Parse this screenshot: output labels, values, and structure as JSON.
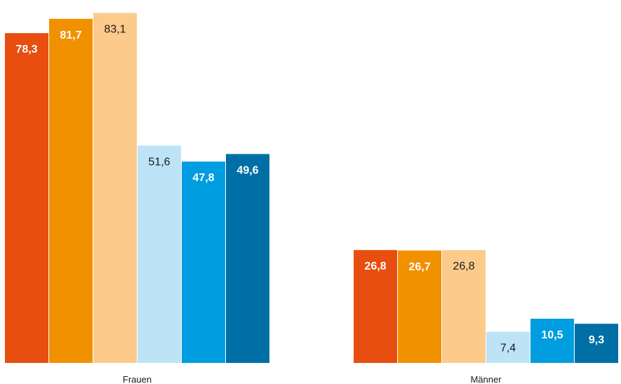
{
  "chart_data": {
    "type": "bar",
    "categories": [
      "Frauen",
      "Männer"
    ],
    "series": [
      {
        "values": [
          78.3,
          26.8
        ],
        "color": "#e84e0f",
        "labels": [
          "78,3",
          "26,8"
        ],
        "label_style": "bold"
      },
      {
        "values": [
          81.7,
          26.7
        ],
        "color": "#f29100",
        "labels": [
          "81,7",
          "26,7"
        ],
        "label_style": "bold"
      },
      {
        "values": [
          83.1,
          26.8
        ],
        "color": "#fccb8c",
        "labels": [
          "83,1",
          "26,8"
        ],
        "label_style": "normal"
      },
      {
        "values": [
          51.6,
          7.4
        ],
        "color": "#bde3f7",
        "labels": [
          "51,6",
          "7,4"
        ],
        "label_style": "normal"
      },
      {
        "values": [
          47.8,
          10.5
        ],
        "color": "#009de0",
        "labels": [
          "47,8",
          "10,5"
        ],
        "label_style": "bold"
      },
      {
        "values": [
          49.6,
          9.3
        ],
        "color": "#006fa6",
        "labels": [
          "49,6",
          "9,3"
        ],
        "label_style": "bold"
      }
    ],
    "ylim": [
      0,
      84.5
    ],
    "grid": false,
    "legend": "none",
    "title": "",
    "xlabel": "",
    "ylabel": ""
  }
}
